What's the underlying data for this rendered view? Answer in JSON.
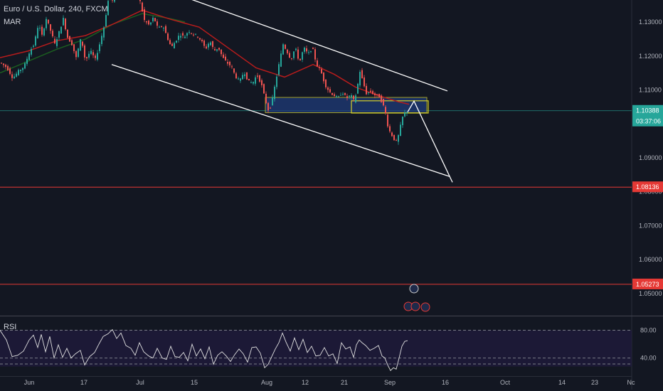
{
  "header": {
    "title": "Euro / U.S. Dollar, 240, FXCM",
    "indicator": "MAR"
  },
  "rsi": {
    "label": "RSI",
    "levels": [
      "80.00",
      "40.00"
    ]
  },
  "colors": {
    "background": "#131722",
    "up": "#26a69a",
    "down": "#ef5350",
    "ma_red": "#b71c1c",
    "ma_green": "#1b5e20",
    "channel": "#ffffff",
    "box_fill": "#1e3a78",
    "box_border": "#d4d02a",
    "hline_red": "#e53935",
    "price_line": "#26a69a"
  },
  "chart_data": {
    "type": "candlestick",
    "title": "Euro / U.S. Dollar, 240, FXCM",
    "y_ticks": [
      "1.13000",
      "1.12000",
      "1.11000",
      "1.09000",
      "1.08000",
      "1.07000",
      "1.06000",
      "1.05000"
    ],
    "ylim": [
      1.0435,
      1.1365
    ],
    "x_ticks": [
      "Jun",
      "17",
      "Jul",
      "15",
      "Aug",
      "12",
      "21",
      "Sep",
      "16",
      "Oct",
      "14",
      "23",
      "Nc"
    ],
    "price_labels": [
      {
        "value": "1.10388",
        "sub": "03:37:06",
        "kind": "current"
      },
      {
        "value": "1.08136",
        "kind": "level"
      },
      {
        "value": "1.05273",
        "kind": "level"
      }
    ],
    "levels": [
      1.08136,
      1.05273
    ],
    "current_price": 1.10388,
    "price_path": [
      [
        0,
        1.118
      ],
      [
        9,
        1.1165
      ],
      [
        17,
        1.1135
      ],
      [
        25,
        1.1155
      ],
      [
        33,
        1.117
      ],
      [
        41,
        1.1215
      ],
      [
        47,
        1.1235
      ],
      [
        53,
        1.1295
      ],
      [
        58,
        1.126
      ],
      [
        64,
        1.131
      ],
      [
        70,
        1.1275
      ],
      [
        76,
        1.1235
      ],
      [
        82,
        1.127
      ],
      [
        88,
        1.131
      ],
      [
        94,
        1.1255
      ],
      [
        100,
        1.1235
      ],
      [
        106,
        1.1195
      ],
      [
        113,
        1.1255
      ],
      [
        119,
        1.1185
      ],
      [
        126,
        1.1215
      ],
      [
        133,
        1.119
      ],
      [
        139,
        1.1235
      ],
      [
        145,
        1.1285
      ],
      [
        152,
        1.1375
      ],
      [
        158,
        1.136
      ],
      [
        164,
        1.139
      ],
      [
        170,
        1.1375
      ],
      [
        177,
        1.1395
      ],
      [
        184,
        1.139
      ],
      [
        190,
        1.1385
      ],
      [
        196,
        1.136
      ],
      [
        202,
        1.1305
      ],
      [
        209,
        1.129
      ],
      [
        215,
        1.1315
      ],
      [
        221,
        1.128
      ],
      [
        228,
        1.129
      ],
      [
        234,
        1.1255
      ],
      [
        240,
        1.1225
      ],
      [
        246,
        1.1245
      ],
      [
        252,
        1.1265
      ],
      [
        258,
        1.1255
      ],
      [
        264,
        1.1275
      ],
      [
        270,
        1.1265
      ],
      [
        276,
        1.126
      ],
      [
        282,
        1.1245
      ],
      [
        288,
        1.122
      ],
      [
        294,
        1.1245
      ],
      [
        300,
        1.1215
      ],
      [
        306,
        1.1225
      ],
      [
        312,
        1.1195
      ],
      [
        318,
        1.118
      ],
      [
        324,
        1.117
      ],
      [
        330,
        1.114
      ],
      [
        336,
        1.1125
      ],
      [
        342,
        1.1155
      ],
      [
        348,
        1.1125
      ],
      [
        354,
        1.112
      ],
      [
        360,
        1.1145
      ],
      [
        366,
        1.112
      ],
      [
        372,
        1.107
      ],
      [
        377,
        1.1035
      ],
      [
        382,
        1.1075
      ],
      [
        387,
        1.113
      ],
      [
        392,
        1.1185
      ],
      [
        397,
        1.1235
      ],
      [
        402,
        1.1215
      ],
      [
        408,
        1.119
      ],
      [
        414,
        1.1225
      ],
      [
        420,
        1.118
      ],
      [
        426,
        1.1225
      ],
      [
        432,
        1.1205
      ],
      [
        438,
        1.1225
      ],
      [
        444,
        1.1175
      ],
      [
        450,
        1.1155
      ],
      [
        456,
        1.1115
      ],
      [
        462,
        1.1095
      ],
      [
        468,
        1.1085
      ],
      [
        474,
        1.1075
      ],
      [
        480,
        1.1095
      ],
      [
        486,
        1.1075
      ],
      [
        492,
        1.1085
      ],
      [
        497,
        1.1065
      ],
      [
        501,
        1.1105
      ],
      [
        505,
        1.1155
      ],
      [
        509,
        1.1125
      ],
      [
        514,
        1.109
      ],
      [
        520,
        1.1095
      ],
      [
        526,
        1.1085
      ],
      [
        532,
        1.108
      ],
      [
        537,
        1.106
      ],
      [
        541,
        1.103
      ],
      [
        545,
        1.0985
      ],
      [
        549,
        1.097
      ],
      [
        553,
        1.0955
      ],
      [
        557,
        1.0945
      ],
      [
        561,
        1.0985
      ],
      [
        565,
        1.102
      ],
      [
        569,
        1.1035
      ],
      [
        573,
        1.104
      ]
    ],
    "ma_red": [
      [
        0,
        1.1195
      ],
      [
        40,
        1.1215
      ],
      [
        80,
        1.1245
      ],
      [
        120,
        1.126
      ],
      [
        160,
        1.1295
      ],
      [
        200,
        1.1335
      ],
      [
        240,
        1.1308
      ],
      [
        280,
        1.1285
      ],
      [
        320,
        1.1225
      ],
      [
        360,
        1.1165
      ],
      [
        400,
        1.1138
      ],
      [
        440,
        1.1175
      ],
      [
        470,
        1.1146
      ],
      [
        500,
        1.1108
      ],
      [
        530,
        1.1085
      ],
      [
        560,
        1.1065
      ],
      [
        575,
        1.1058
      ]
    ],
    "ma_green": [
      [
        0,
        1.115
      ],
      [
        40,
        1.1185
      ],
      [
        80,
        1.122
      ],
      [
        120,
        1.125
      ],
      [
        160,
        1.1295
      ],
      [
        200,
        1.1325
      ],
      [
        240,
        1.131
      ],
      [
        260,
        1.13
      ]
    ],
    "rsi_path": [
      [
        0,
        80
      ],
      [
        9,
        66
      ],
      [
        17,
        42
      ],
      [
        25,
        44
      ],
      [
        33,
        50
      ],
      [
        41,
        66
      ],
      [
        47,
        73
      ],
      [
        53,
        55
      ],
      [
        58,
        74
      ],
      [
        64,
        49
      ],
      [
        70,
        71
      ],
      [
        76,
        40
      ],
      [
        82,
        59
      ],
      [
        88,
        41
      ],
      [
        94,
        54
      ],
      [
        100,
        40
      ],
      [
        106,
        46
      ],
      [
        113,
        51
      ],
      [
        119,
        30
      ],
      [
        126,
        42
      ],
      [
        133,
        48
      ],
      [
        139,
        60
      ],
      [
        145,
        71
      ],
      [
        152,
        75
      ],
      [
        158,
        81
      ],
      [
        164,
        68
      ],
      [
        170,
        76
      ],
      [
        177,
        58
      ],
      [
        184,
        54
      ],
      [
        190,
        44
      ],
      [
        196,
        62
      ],
      [
        202,
        49
      ],
      [
        209,
        43
      ],
      [
        215,
        40
      ],
      [
        221,
        54
      ],
      [
        228,
        40
      ],
      [
        234,
        38
      ],
      [
        240,
        57
      ],
      [
        246,
        42
      ],
      [
        252,
        41
      ],
      [
        258,
        48
      ],
      [
        264,
        36
      ],
      [
        270,
        60
      ],
      [
        276,
        43
      ],
      [
        282,
        53
      ],
      [
        288,
        39
      ],
      [
        294,
        56
      ],
      [
        300,
        31
      ],
      [
        306,
        44
      ],
      [
        312,
        49
      ],
      [
        318,
        43
      ],
      [
        324,
        35
      ],
      [
        330,
        45
      ],
      [
        336,
        53
      ],
      [
        342,
        46
      ],
      [
        348,
        34
      ],
      [
        354,
        55
      ],
      [
        360,
        56
      ],
      [
        366,
        47
      ],
      [
        372,
        26
      ],
      [
        377,
        31
      ],
      [
        382,
        42
      ],
      [
        387,
        53
      ],
      [
        392,
        62
      ],
      [
        397,
        76
      ],
      [
        402,
        63
      ],
      [
        408,
        50
      ],
      [
        414,
        69
      ],
      [
        420,
        52
      ],
      [
        426,
        67
      ],
      [
        432,
        48
      ],
      [
        438,
        57
      ],
      [
        444,
        43
      ],
      [
        450,
        44
      ],
      [
        456,
        55
      ],
      [
        462,
        43
      ],
      [
        468,
        46
      ],
      [
        474,
        32
      ],
      [
        480,
        62
      ],
      [
        486,
        53
      ],
      [
        492,
        56
      ],
      [
        497,
        41
      ],
      [
        501,
        59
      ],
      [
        505,
        66
      ],
      [
        509,
        62
      ],
      [
        514,
        58
      ],
      [
        520,
        51
      ],
      [
        526,
        54
      ],
      [
        532,
        58
      ],
      [
        537,
        43
      ],
      [
        541,
        40
      ],
      [
        545,
        30
      ],
      [
        549,
        22
      ],
      [
        553,
        26
      ],
      [
        557,
        24
      ],
      [
        561,
        40
      ],
      [
        565,
        57
      ],
      [
        569,
        64
      ],
      [
        573,
        65
      ]
    ],
    "rsi_ylim": [
      15,
      100
    ],
    "rsi_levels": [
      80,
      40
    ]
  }
}
